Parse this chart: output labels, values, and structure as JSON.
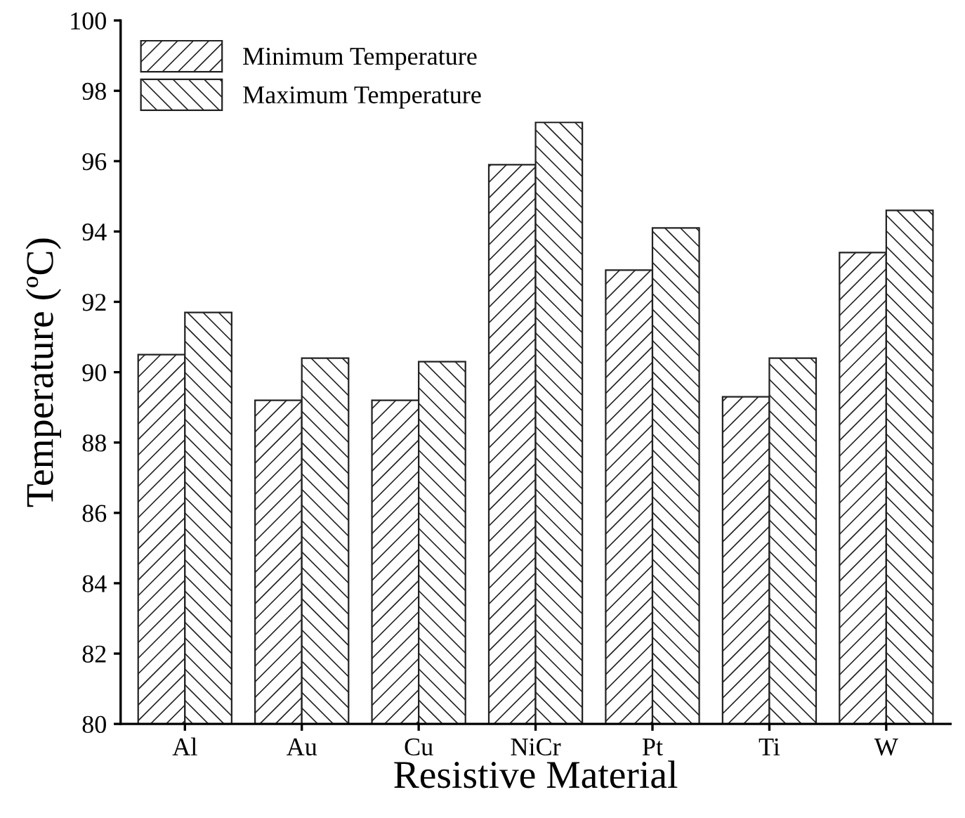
{
  "chart_data": {
    "type": "bar",
    "xlabel": "Resistive Material",
    "ylabel": "Temperature (ºC)",
    "categories": [
      "Al",
      "Au",
      "Cu",
      "NiCr",
      "Pt",
      "Ti",
      "W"
    ],
    "series": [
      {
        "name": "Minimum Temperature",
        "color": "#222222",
        "values": [
          90.5,
          89.2,
          89.2,
          95.9,
          92.9,
          89.3,
          93.4
        ]
      },
      {
        "name": "Maximum Temperature",
        "color": "#222222",
        "values": [
          91.7,
          90.4,
          90.3,
          97.1,
          94.1,
          90.4,
          94.6
        ]
      }
    ],
    "ylim": [
      80,
      100
    ],
    "yticks": [
      80,
      82,
      84,
      86,
      88,
      90,
      92,
      94,
      96,
      98,
      100
    ],
    "grid": false,
    "legend": "top left"
  }
}
